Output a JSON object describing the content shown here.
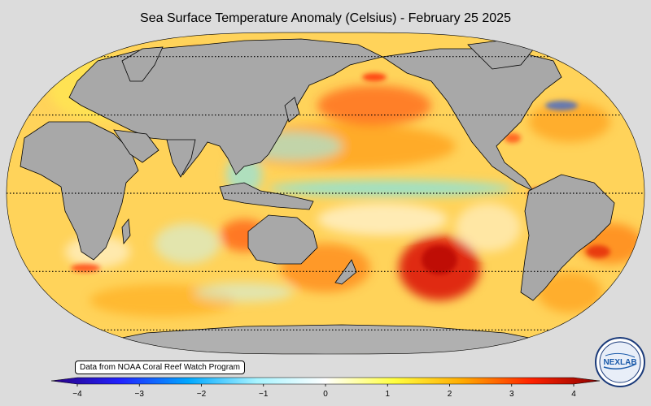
{
  "title": "Sea Surface Temperature Anomaly (Celsius) - February 25 2025",
  "credit": "Data from NOAA Coral Reef Watch Program",
  "logo_text": "NEXLAB",
  "colorbar": {
    "min": -4,
    "max": 4,
    "ticks": [
      {
        "value": -4,
        "label": "−4"
      },
      {
        "value": -3,
        "label": "−3"
      },
      {
        "value": -2,
        "label": "−2"
      },
      {
        "value": -1,
        "label": "−1"
      },
      {
        "value": 0,
        "label": "0"
      },
      {
        "value": 1,
        "label": "1"
      },
      {
        "value": 2,
        "label": "2"
      },
      {
        "value": 3,
        "label": "3"
      },
      {
        "value": 4,
        "label": "4"
      }
    ],
    "colors": [
      "#2a0080",
      "#2222ff",
      "#00a8ff",
      "#a8f4ff",
      "#ffffff",
      "#ffff40",
      "#ffaa00",
      "#ff2200",
      "#8a0000"
    ]
  },
  "map": {
    "projection": "robinson",
    "ocean_base_color": "#ffd35a",
    "land_color": "#a8a8a8",
    "ice_color": "#b0b0b0",
    "parallels_deg": [
      -60,
      -30,
      0,
      30,
      60
    ]
  }
}
